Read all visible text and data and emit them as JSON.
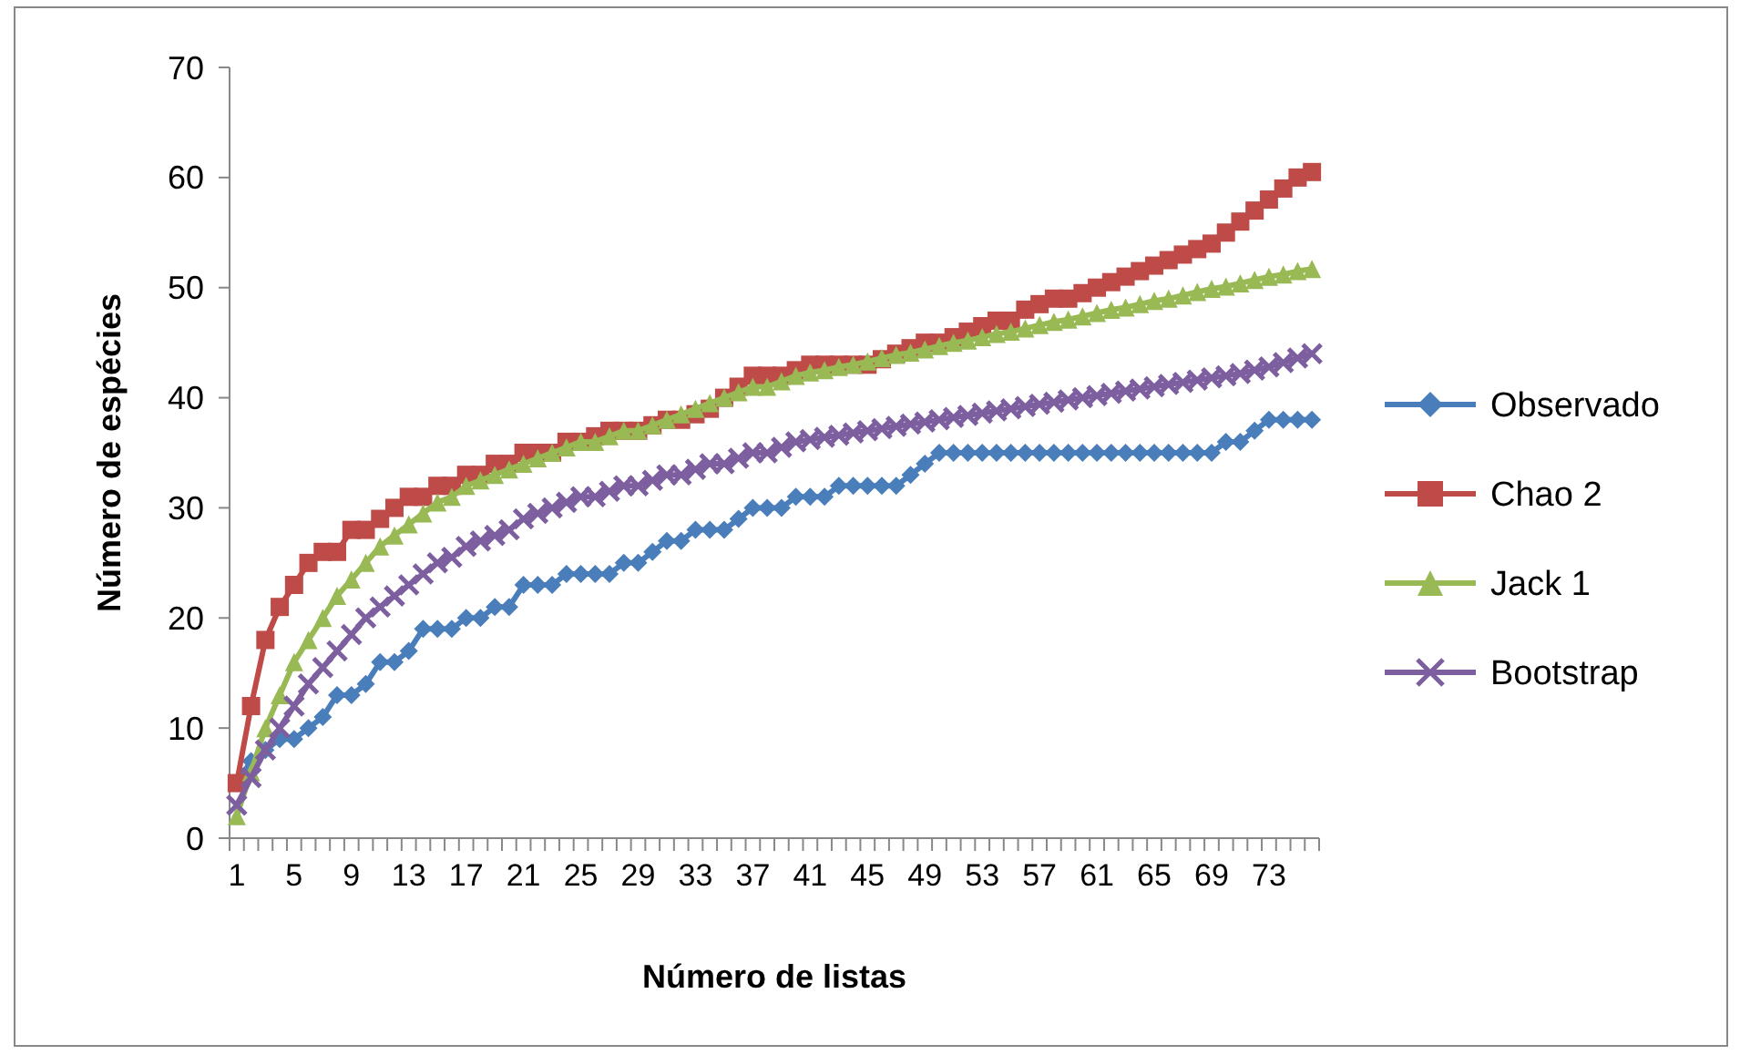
{
  "chart_data": {
    "type": "line",
    "xlabel": "Número de listas",
    "ylabel": "Número de espécies",
    "ylim": [
      0,
      70
    ],
    "yticks": [
      0,
      10,
      20,
      30,
      40,
      50,
      60,
      70
    ],
    "grid": false,
    "legend": "right",
    "categories": [
      "1",
      null,
      null,
      null,
      "5",
      null,
      null,
      null,
      "9",
      null,
      null,
      null,
      "13",
      null,
      null,
      null,
      "17",
      null,
      null,
      null,
      "21",
      null,
      null,
      null,
      "25",
      null,
      null,
      null,
      "29",
      null,
      null,
      null,
      "33",
      null,
      null,
      null,
      "37",
      null,
      null,
      null,
      "41",
      null,
      null,
      null,
      "45",
      null,
      null,
      null,
      "49",
      null,
      null,
      null,
      "53",
      null,
      null,
      null,
      "57",
      null,
      null,
      null,
      "61",
      null,
      null,
      null,
      "65",
      null,
      null,
      null,
      "69",
      null,
      null,
      null,
      "73",
      null,
      null,
      null
    ],
    "series": [
      {
        "name": "Observado",
        "color": "#4a7ebb",
        "marker": "diamond",
        "values": [
          5,
          7,
          8,
          9,
          9,
          10,
          11,
          13,
          13,
          14,
          16,
          16,
          17,
          19,
          19,
          19,
          20,
          20,
          21,
          21,
          23,
          23,
          23,
          24,
          24,
          24,
          24,
          25,
          25,
          26,
          27,
          27,
          28,
          28,
          28,
          29,
          30,
          30,
          30,
          31,
          31,
          31,
          32,
          32,
          32,
          32,
          32,
          33,
          34,
          35,
          35,
          35,
          35,
          35,
          35,
          35,
          35,
          35,
          35,
          35,
          35,
          35,
          35,
          35,
          35,
          35,
          35,
          35,
          35,
          36,
          36,
          37,
          38,
          38,
          38,
          38
        ]
      },
      {
        "name": "Chao 2",
        "color": "#be4b48",
        "marker": "square",
        "values": [
          5,
          12,
          18,
          21,
          23,
          25,
          26,
          26,
          28,
          28,
          29,
          30,
          31,
          31,
          32,
          32,
          33,
          33,
          34,
          34,
          35,
          35,
          35,
          36,
          36,
          36.5,
          37,
          37,
          37,
          37.5,
          38,
          38,
          38.5,
          39,
          40,
          41,
          42,
          42,
          42,
          42.5,
          43,
          43,
          43,
          43,
          43,
          43.5,
          44,
          44.5,
          45,
          45,
          45.5,
          46,
          46.5,
          47,
          47,
          48,
          48.5,
          49,
          49,
          49.5,
          50,
          50.5,
          51,
          51.5,
          52,
          52.5,
          53,
          53.5,
          54,
          55,
          56,
          57,
          58,
          59,
          60,
          60.5
        ]
      },
      {
        "name": "Jack 1",
        "color": "#98b954",
        "marker": "triangle",
        "values": [
          2,
          6,
          10,
          13,
          16,
          18,
          20,
          22,
          23.5,
          25,
          26.5,
          27.5,
          28.5,
          29.5,
          30.5,
          31,
          32,
          32.5,
          33,
          33.5,
          34,
          34.5,
          35,
          35.5,
          36,
          36,
          36.5,
          37,
          37,
          37.5,
          38,
          38.5,
          39,
          39.5,
          40,
          40.5,
          41,
          41,
          41.5,
          42,
          42.3,
          42.5,
          42.8,
          43,
          43.3,
          43.6,
          43.9,
          44.1,
          44.4,
          44.7,
          45,
          45.2,
          45.5,
          45.8,
          46,
          46.3,
          46.6,
          46.9,
          47.1,
          47.4,
          47.7,
          48,
          48.2,
          48.5,
          48.8,
          49,
          49.3,
          49.6,
          49.9,
          50.1,
          50.4,
          50.7,
          51,
          51.2,
          51.5,
          51.7
        ]
      },
      {
        "name": "Bootstrap",
        "color": "#7d5fa0",
        "marker": "cross",
        "values": [
          3,
          5.5,
          8,
          10,
          12,
          14,
          15.5,
          17,
          18.5,
          20,
          21,
          22,
          23,
          24,
          25,
          25.5,
          26.5,
          27,
          27.5,
          28,
          29,
          29.5,
          30,
          30.5,
          31,
          31,
          31.5,
          32,
          32,
          32.5,
          33,
          33,
          33.5,
          34,
          34,
          34.5,
          35,
          35,
          35.5,
          36,
          36.2,
          36.4,
          36.6,
          36.8,
          37,
          37.2,
          37.4,
          37.6,
          37.8,
          38,
          38.2,
          38.4,
          38.6,
          38.8,
          39,
          39.2,
          39.4,
          39.6,
          39.8,
          40,
          40.2,
          40.4,
          40.6,
          40.8,
          41,
          41.2,
          41.4,
          41.6,
          41.8,
          42,
          42.2,
          42.5,
          42.8,
          43.2,
          43.6,
          44
        ]
      }
    ]
  }
}
